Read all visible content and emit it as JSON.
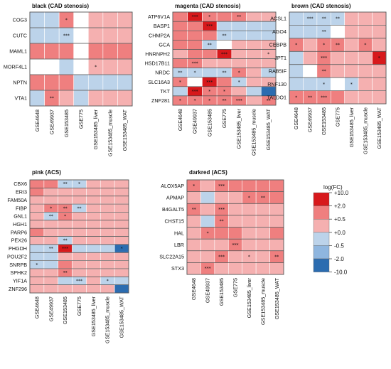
{
  "legend": {
    "title": "log(FC)",
    "labels": [
      "+10.0",
      "+2.0",
      "+0.5",
      "+0.0",
      "-0.5",
      "-2.0",
      "-10.0"
    ],
    "colors": [
      "#d7191c",
      "#ef7f7f",
      "#f5b0b0",
      "#fbe0e0",
      "#bcd3ea",
      "#8fb6df",
      "#2b6cb0"
    ]
  },
  "chart_data": [
    {
      "type": "heatmap",
      "title": "black (CAD stenosis)",
      "columns": [
        "GSE4648",
        "GSE49937",
        "GSE153485",
        "GSE775",
        "GSE153485_liver",
        "GSE153485_muscle",
        "GSE153485_WAT"
      ],
      "rows": [
        "COG3",
        "CUTC",
        "MAML1",
        "MORF4L1",
        "NPTN",
        "VTA1"
      ],
      "values": [
        [
          -0.3,
          -0.3,
          0.6,
          0,
          0.3,
          0.3,
          0.3
        ],
        [
          -0.3,
          -0.3,
          -0.4,
          0,
          0.3,
          0.3,
          0.3
        ],
        [
          0.6,
          0.6,
          0.6,
          0,
          0.6,
          0.6,
          0.6
        ],
        [
          0,
          0,
          -0.3,
          0,
          0.3,
          0.3,
          0.3
        ],
        [
          0.6,
          0.6,
          0.6,
          -0.3,
          -0.3,
          -0.3,
          -0.3
        ],
        [
          -0.3,
          0.6,
          0.3,
          -0.3,
          0.3,
          0.3,
          0.3
        ]
      ],
      "significance": [
        [
          "",
          "",
          "*",
          "",
          "",
          "",
          ""
        ],
        [
          "",
          "",
          "***",
          "",
          "",
          "",
          ""
        ],
        [
          "",
          "",
          "",
          "",
          "",
          "",
          ""
        ],
        [
          "",
          "",
          "",
          "",
          "*",
          "",
          ""
        ],
        [
          "",
          "",
          "",
          "",
          "",
          "",
          ""
        ],
        [
          "",
          "**",
          "",
          "",
          "",
          "",
          ""
        ]
      ]
    },
    {
      "type": "heatmap",
      "title": "magenta (CAD stenosis)",
      "columns": [
        "GSE4648",
        "GSE49937",
        "GSE153485",
        "GSE775",
        "GSE153485_liver",
        "GSE153485_muscle",
        "GSE153485_WAT"
      ],
      "rows": [
        "ATP6V1A",
        "BASP1",
        "CHMP2A",
        "GCA",
        "HNRNPH2",
        "HSD17B11",
        "NRDC",
        "SLC16A3",
        "TKT",
        "ZNF281"
      ],
      "values": [
        [
          0.6,
          2.5,
          0.6,
          0.6,
          0.6,
          0.3,
          0.3
        ],
        [
          0.6,
          0.6,
          3.0,
          -0.3,
          -0.3,
          -0.3,
          -0.3
        ],
        [
          0.6,
          0.6,
          0.6,
          -0.3,
          -0.3,
          -0.3,
          -0.3
        ],
        [
          0.6,
          0.6,
          -0.3,
          0,
          0.3,
          0.3,
          0.3
        ],
        [
          0.3,
          0.6,
          0.6,
          2.5,
          0.3,
          0.3,
          0.3
        ],
        [
          0.6,
          0.6,
          0.3,
          0.3,
          0.3,
          0.3,
          0.3
        ],
        [
          -0.3,
          -0.3,
          -0.3,
          -0.3,
          0.6,
          0.3,
          -0.3
        ],
        [
          0.6,
          0,
          3.0,
          0.6,
          -0.3,
          0.3,
          0.3
        ],
        [
          -0.3,
          3.0,
          0.6,
          0.6,
          0.3,
          -0.3,
          -3.0
        ],
        [
          0.6,
          0.6,
          0.6,
          0.6,
          0.6,
          0.3,
          0.6
        ]
      ],
      "significance": [
        [
          "",
          "***",
          "*",
          "",
          "**",
          "",
          ""
        ],
        [
          "",
          "",
          "***",
          "",
          "",
          "",
          ""
        ],
        [
          "",
          "",
          "",
          "**",
          "",
          "",
          ""
        ],
        [
          "",
          "",
          "**",
          "",
          "",
          "",
          ""
        ],
        [
          "",
          "",
          "",
          "***",
          "",
          "",
          "*"
        ],
        [
          "",
          "***",
          "",
          "",
          "",
          "",
          ""
        ],
        [
          "**",
          "*",
          "",
          "**",
          "*",
          "",
          ""
        ],
        [
          "*",
          "",
          "***",
          "",
          "*",
          "",
          ""
        ],
        [
          "",
          "***",
          "*",
          "*",
          "",
          "",
          ""
        ],
        [
          "*",
          "*",
          "*",
          "**",
          "***",
          "",
          "**"
        ]
      ]
    },
    {
      "type": "heatmap",
      "title": "brown (CAD stenosis)",
      "columns": [
        "GSE4648",
        "GSE49937",
        "GSE153485",
        "GSE775",
        "GSE153485_liver",
        "GSE153485_muscle",
        "GSE153485_WAT"
      ],
      "rows": [
        "ACSL1",
        "AGO4",
        "CEBPB",
        "JPT1",
        "RAB5IF",
        "RNF130",
        "TALDO1"
      ],
      "values": [
        [
          -0.3,
          -0.3,
          -0.3,
          -0.3,
          0.3,
          0.3,
          0.3
        ],
        [
          -0.3,
          -0.3,
          -0.3,
          0,
          0.3,
          0.3,
          0.3
        ],
        [
          0.6,
          0.3,
          0.6,
          0.6,
          0.3,
          0.6,
          0.3
        ],
        [
          -0.3,
          0.3,
          0.6,
          0.3,
          0.3,
          0.3,
          2.5
        ],
        [
          -0.3,
          0,
          0.6,
          0.3,
          0.3,
          0.3,
          0.3
        ],
        [
          -0.3,
          -0.3,
          -0.3,
          0,
          -0.3,
          0.3,
          0.3
        ],
        [
          0.6,
          0.6,
          0.6,
          0.6,
          0.3,
          0.3,
          0.3
        ]
      ],
      "significance": [
        [
          "",
          "***",
          "**",
          "**",
          "",
          "",
          ""
        ],
        [
          "",
          "",
          "**",
          "",
          "",
          "",
          ""
        ],
        [
          "*",
          "",
          "*",
          "**",
          "",
          "*",
          ""
        ],
        [
          "",
          "",
          "***",
          "",
          "",
          "",
          "*"
        ],
        [
          "",
          "",
          "**",
          "",
          "",
          "",
          ""
        ],
        [
          "",
          "",
          "*",
          "",
          "*",
          "",
          ""
        ],
        [
          "*",
          "**",
          "***",
          "",
          "",
          "",
          ""
        ]
      ]
    },
    {
      "type": "heatmap",
      "title": "pink (ACS)",
      "columns": [
        "GSE4648",
        "GSE49937",
        "GSE153485",
        "GSE775",
        "GSE153485_liver",
        "GSE153485_muscle",
        "GSE153485_WAT"
      ],
      "rows": [
        "CBX6",
        "ERI3",
        "FAM50A",
        "FIBP",
        "GNL1",
        "HGH1",
        "PARP6",
        "PEX26",
        "PHGDH",
        "POU2F2",
        "SNRPB",
        "SPHK2",
        "YIF1A",
        "ZNF296"
      ],
      "values": [
        [
          0.6,
          0.6,
          -0.3,
          -0.3,
          0.3,
          0.3,
          0.3
        ],
        [
          0.6,
          0.3,
          0.3,
          0.3,
          0.3,
          0.3,
          0.3
        ],
        [
          0.3,
          0.3,
          0.3,
          0.3,
          0.3,
          0.3,
          0.3
        ],
        [
          0.3,
          0.6,
          0.6,
          -0.3,
          0.3,
          0.3,
          0.3
        ],
        [
          0.3,
          -0.3,
          0.6,
          0.3,
          0.3,
          0.3,
          0.3
        ],
        [
          0.3,
          0.3,
          0.3,
          0.3,
          0.3,
          0.3,
          0.3
        ],
        [
          0.6,
          0.3,
          0.3,
          0.3,
          0.3,
          0.3,
          0.3
        ],
        [
          0.3,
          0.3,
          -0.3,
          0.3,
          0.3,
          0.3,
          0.3
        ],
        [
          -0.3,
          -0.3,
          2.5,
          -0.3,
          -0.3,
          -0.3,
          -2.5
        ],
        [
          -0.3,
          -0.3,
          0.3,
          0.3,
          0.3,
          0.3,
          0.3
        ],
        [
          -0.3,
          -0.3,
          0.6,
          0.3,
          0.3,
          0.3,
          0.3
        ],
        [
          0.3,
          0.3,
          0.6,
          0.3,
          0.3,
          0.3,
          0.3
        ],
        [
          0.3,
          0.3,
          -0.3,
          -0.3,
          0.3,
          -0.3,
          -0.3
        ],
        [
          0.3,
          0.3,
          0.3,
          0.3,
          0.3,
          0.3,
          -2.5
        ]
      ],
      "significance": [
        [
          "",
          "",
          "**",
          "*",
          "",
          "",
          ""
        ],
        [
          "",
          "",
          "",
          "",
          "",
          "",
          ""
        ],
        [
          "",
          "",
          "",
          "",
          "",
          "",
          ""
        ],
        [
          "",
          "*",
          "**",
          "**",
          "",
          "",
          ""
        ],
        [
          "",
          "**",
          "*",
          "",
          "",
          "",
          ""
        ],
        [
          "",
          "",
          "",
          "",
          "",
          "",
          ""
        ],
        [
          "",
          "",
          "",
          "",
          "",
          "",
          ""
        ],
        [
          "",
          "",
          "**",
          "",
          "",
          "",
          ""
        ],
        [
          "",
          "**",
          "***",
          "",
          "",
          "",
          "*"
        ],
        [
          "",
          "",
          "",
          "",
          "",
          "",
          ""
        ],
        [
          "*",
          "",
          "",
          "",
          "",
          "",
          ""
        ],
        [
          "",
          "",
          "**",
          "",
          "",
          "",
          ""
        ],
        [
          "",
          "",
          "",
          "***",
          "",
          "*",
          ""
        ],
        [
          "",
          "",
          "",
          "",
          "",
          "",
          ""
        ]
      ]
    },
    {
      "type": "heatmap",
      "title": "darkred (ACS)",
      "columns": [
        "GSE4648",
        "GSE49937",
        "GSE153485",
        "GSE775",
        "GSE153485_liver",
        "GSE153485_muscle",
        "GSE153485_WAT"
      ],
      "rows": [
        "ALOX5AP",
        "APMAP",
        "B4GALT5",
        "CHST15",
        "HAL",
        "LBR",
        "SLC22A15",
        "STX3"
      ],
      "values": [
        [
          0.6,
          0.3,
          0.6,
          0.6,
          0.6,
          0.6,
          0.6
        ],
        [
          0.3,
          -0.3,
          0.3,
          0.3,
          0.6,
          0.6,
          0.6
        ],
        [
          0.6,
          0.3,
          0.6,
          0.3,
          0.3,
          0.3,
          0.3
        ],
        [
          0.3,
          -0.3,
          0.6,
          0.3,
          0.3,
          0.3,
          0.3
        ],
        [
          0.3,
          0.6,
          0.6,
          0.6,
          0.3,
          0.3,
          0.6
        ],
        [
          0.3,
          0.3,
          0.3,
          0.6,
          0.3,
          0.3,
          0.3
        ],
        [
          0.3,
          0.3,
          0.6,
          0.3,
          0.3,
          0.3,
          0.6
        ],
        [
          0.3,
          0.6,
          0.3,
          0.3,
          0.3,
          0.3,
          0.3
        ]
      ],
      "significance": [
        [
          "*",
          "",
          "***",
          "",
          "",
          "",
          ""
        ],
        [
          "",
          "",
          "",
          "",
          "*",
          "**",
          ""
        ],
        [
          "**",
          "",
          "***",
          "",
          "",
          "",
          ""
        ],
        [
          "",
          "",
          "**",
          "",
          "",
          "",
          ""
        ],
        [
          "",
          "*",
          "",
          "",
          "",
          "",
          ""
        ],
        [
          "",
          "",
          "",
          "***",
          "",
          "",
          ""
        ],
        [
          "",
          "",
          "***",
          "",
          "*",
          "",
          "**"
        ],
        [
          "",
          "***",
          "",
          "",
          "",
          "",
          ""
        ]
      ]
    }
  ]
}
